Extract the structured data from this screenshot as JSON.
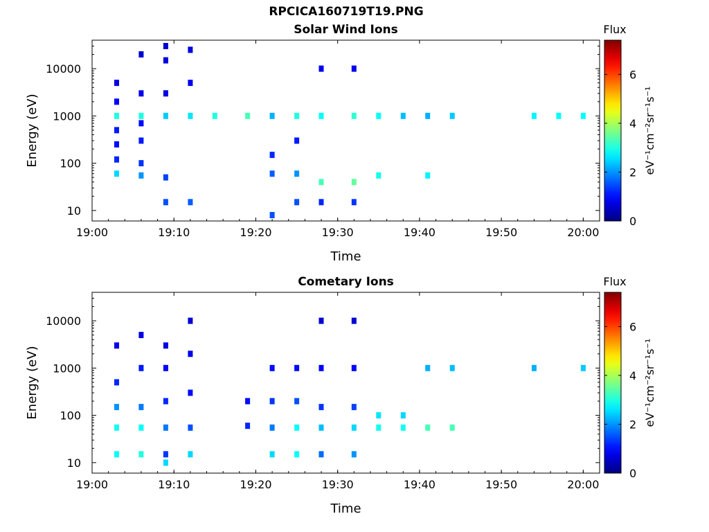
{
  "figure": {
    "title": "RPCICA160719T19.PNG"
  },
  "chart_data": [
    {
      "type": "heatmap",
      "title": "Solar Wind Ions",
      "xlabel": "Time",
      "ylabel": "Energy (eV)",
      "y_scale": "log",
      "ylim": [
        6,
        40000
      ],
      "xlim": [
        "19:00",
        "20:02"
      ],
      "x_ticks": [
        "19:00",
        "19:10",
        "19:20",
        "19:30",
        "19:40",
        "19:50",
        "20:00"
      ],
      "y_ticks": [
        "10",
        "100",
        "1000",
        "10000"
      ],
      "colorbar": {
        "label": "Flux",
        "unit": "eV⁻¹cm⁻²sr⁻¹s⁻¹",
        "range": [
          0,
          7.4
        ],
        "ticks": [
          "0",
          "2",
          "4",
          "6"
        ],
        "colormap": "jet"
      },
      "cells": [
        {
          "t": "19:03",
          "e": 60,
          "flux": 2.5
        },
        {
          "t": "19:03",
          "e": 120,
          "flux": 1.2
        },
        {
          "t": "19:03",
          "e": 250,
          "flux": 1.0
        },
        {
          "t": "19:03",
          "e": 500,
          "flux": 1.1
        },
        {
          "t": "19:03",
          "e": 1000,
          "flux": 3.0
        },
        {
          "t": "19:03",
          "e": 2000,
          "flux": 0.9
        },
        {
          "t": "19:03",
          "e": 5000,
          "flux": 0.7
        },
        {
          "t": "19:06",
          "e": 55,
          "flux": 2.0
        },
        {
          "t": "19:06",
          "e": 100,
          "flux": 1.3
        },
        {
          "t": "19:06",
          "e": 300,
          "flux": 1.1
        },
        {
          "t": "19:06",
          "e": 700,
          "flux": 1.0
        },
        {
          "t": "19:06",
          "e": 1000,
          "flux": 3.0
        },
        {
          "t": "19:06",
          "e": 3000,
          "flux": 0.8
        },
        {
          "t": "19:06",
          "e": 20000,
          "flux": 0.6
        },
        {
          "t": "19:09",
          "e": 15,
          "flux": 1.5
        },
        {
          "t": "19:09",
          "e": 50,
          "flux": 1.4
        },
        {
          "t": "19:09",
          "e": 1000,
          "flux": 2.4
        },
        {
          "t": "19:09",
          "e": 3000,
          "flux": 0.7
        },
        {
          "t": "19:09",
          "e": 15000,
          "flux": 0.7
        },
        {
          "t": "19:09",
          "e": 30000,
          "flux": 0.6
        },
        {
          "t": "19:12",
          "e": 15,
          "flux": 1.6
        },
        {
          "t": "19:12",
          "e": 1000,
          "flux": 2.6
        },
        {
          "t": "19:12",
          "e": 5000,
          "flux": 0.8
        },
        {
          "t": "19:12",
          "e": 25000,
          "flux": 0.7
        },
        {
          "t": "19:15",
          "e": 1000,
          "flux": 3.0
        },
        {
          "t": "19:19",
          "e": 1000,
          "flux": 3.3
        },
        {
          "t": "19:22",
          "e": 8,
          "flux": 1.5
        },
        {
          "t": "19:22",
          "e": 60,
          "flux": 1.6
        },
        {
          "t": "19:22",
          "e": 150,
          "flux": 1.2
        },
        {
          "t": "19:22",
          "e": 1000,
          "flux": 2.2
        },
        {
          "t": "19:25",
          "e": 15,
          "flux": 1.5
        },
        {
          "t": "19:25",
          "e": 60,
          "flux": 2.0
        },
        {
          "t": "19:25",
          "e": 300,
          "flux": 1.1
        },
        {
          "t": "19:25",
          "e": 1000,
          "flux": 3.0
        },
        {
          "t": "19:28",
          "e": 15,
          "flux": 1.2
        },
        {
          "t": "19:28",
          "e": 40,
          "flux": 3.3
        },
        {
          "t": "19:28",
          "e": 1000,
          "flux": 2.8
        },
        {
          "t": "19:28",
          "e": 10000,
          "flux": 0.8
        },
        {
          "t": "19:32",
          "e": 15,
          "flux": 1.3
        },
        {
          "t": "19:32",
          "e": 40,
          "flux": 3.5
        },
        {
          "t": "19:32",
          "e": 1000,
          "flux": 3.1
        },
        {
          "t": "19:32",
          "e": 10000,
          "flux": 0.8
        },
        {
          "t": "19:35",
          "e": 55,
          "flux": 2.9
        },
        {
          "t": "19:35",
          "e": 1000,
          "flux": 2.8
        },
        {
          "t": "19:38",
          "e": 1000,
          "flux": 2.3
        },
        {
          "t": "19:41",
          "e": 55,
          "flux": 2.7
        },
        {
          "t": "19:41",
          "e": 1000,
          "flux": 2.2
        },
        {
          "t": "19:44",
          "e": 1000,
          "flux": 2.4
        },
        {
          "t": "19:54",
          "e": 1000,
          "flux": 2.7
        },
        {
          "t": "19:57",
          "e": 1000,
          "flux": 2.8
        },
        {
          "t": "20:00",
          "e": 1000,
          "flux": 2.8
        }
      ]
    },
    {
      "type": "heatmap",
      "title": "Cometary Ions",
      "xlabel": "Time",
      "ylabel": "Energy (eV)",
      "y_scale": "log",
      "ylim": [
        6,
        40000
      ],
      "xlim": [
        "19:00",
        "20:02"
      ],
      "x_ticks": [
        "19:00",
        "19:10",
        "19:20",
        "19:30",
        "19:40",
        "19:50",
        "20:00"
      ],
      "y_ticks": [
        "10",
        "100",
        "1000",
        "10000"
      ],
      "colorbar": {
        "label": "Flux",
        "unit": "eV⁻¹cm⁻²sr⁻¹s⁻¹",
        "range": [
          0,
          7.4
        ],
        "ticks": [
          "0",
          "2",
          "4",
          "6"
        ],
        "colormap": "jet"
      },
      "cells": [
        {
          "t": "19:03",
          "e": 15,
          "flux": 2.8
        },
        {
          "t": "19:03",
          "e": 55,
          "flux": 2.9
        },
        {
          "t": "19:03",
          "e": 150,
          "flux": 2.0
        },
        {
          "t": "19:03",
          "e": 500,
          "flux": 1.2
        },
        {
          "t": "19:03",
          "e": 3000,
          "flux": 0.8
        },
        {
          "t": "19:06",
          "e": 15,
          "flux": 3.0
        },
        {
          "t": "19:06",
          "e": 55,
          "flux": 2.8
        },
        {
          "t": "19:06",
          "e": 150,
          "flux": 1.8
        },
        {
          "t": "19:06",
          "e": 1000,
          "flux": 1.1
        },
        {
          "t": "19:06",
          "e": 5000,
          "flux": 0.7
        },
        {
          "t": "19:09",
          "e": 10,
          "flux": 2.5
        },
        {
          "t": "19:09",
          "e": 15,
          "flux": 1.3
        },
        {
          "t": "19:09",
          "e": 55,
          "flux": 1.8
        },
        {
          "t": "19:09",
          "e": 200,
          "flux": 1.2
        },
        {
          "t": "19:09",
          "e": 1000,
          "flux": 0.9
        },
        {
          "t": "19:09",
          "e": 3000,
          "flux": 0.7
        },
        {
          "t": "19:12",
          "e": 15,
          "flux": 2.5
        },
        {
          "t": "19:12",
          "e": 55,
          "flux": 1.5
        },
        {
          "t": "19:12",
          "e": 300,
          "flux": 1.0
        },
        {
          "t": "19:12",
          "e": 2000,
          "flux": 0.8
        },
        {
          "t": "19:12",
          "e": 10000,
          "flux": 0.6
        },
        {
          "t": "19:19",
          "e": 60,
          "flux": 1.2
        },
        {
          "t": "19:19",
          "e": 200,
          "flux": 1.0
        },
        {
          "t": "19:22",
          "e": 15,
          "flux": 2.5
        },
        {
          "t": "19:22",
          "e": 55,
          "flux": 1.8
        },
        {
          "t": "19:22",
          "e": 200,
          "flux": 1.3
        },
        {
          "t": "19:22",
          "e": 1000,
          "flux": 1.0
        },
        {
          "t": "19:25",
          "e": 15,
          "flux": 2.8
        },
        {
          "t": "19:25",
          "e": 55,
          "flux": 2.8
        },
        {
          "t": "19:25",
          "e": 200,
          "flux": 1.5
        },
        {
          "t": "19:25",
          "e": 1000,
          "flux": 1.0
        },
        {
          "t": "19:28",
          "e": 15,
          "flux": 1.7
        },
        {
          "t": "19:28",
          "e": 55,
          "flux": 2.3
        },
        {
          "t": "19:28",
          "e": 150,
          "flux": 1.3
        },
        {
          "t": "19:28",
          "e": 1000,
          "flux": 0.9
        },
        {
          "t": "19:28",
          "e": 10000,
          "flux": 0.6
        },
        {
          "t": "19:32",
          "e": 15,
          "flux": 2.0
        },
        {
          "t": "19:32",
          "e": 55,
          "flux": 2.5
        },
        {
          "t": "19:32",
          "e": 150,
          "flux": 1.4
        },
        {
          "t": "19:32",
          "e": 1000,
          "flux": 0.9
        },
        {
          "t": "19:32",
          "e": 10000,
          "flux": 0.6
        },
        {
          "t": "19:35",
          "e": 55,
          "flux": 2.9
        },
        {
          "t": "19:35",
          "e": 100,
          "flux": 2.6
        },
        {
          "t": "19:38",
          "e": 55,
          "flux": 2.9
        },
        {
          "t": "19:38",
          "e": 100,
          "flux": 2.5
        },
        {
          "t": "19:41",
          "e": 55,
          "flux": 3.3
        },
        {
          "t": "19:41",
          "e": 1000,
          "flux": 2.2
        },
        {
          "t": "19:44",
          "e": 55,
          "flux": 3.3
        },
        {
          "t": "19:44",
          "e": 1000,
          "flux": 2.3
        },
        {
          "t": "19:54",
          "e": 1000,
          "flux": 2.2
        },
        {
          "t": "20:00",
          "e": 1000,
          "flux": 2.4
        }
      ]
    }
  ]
}
